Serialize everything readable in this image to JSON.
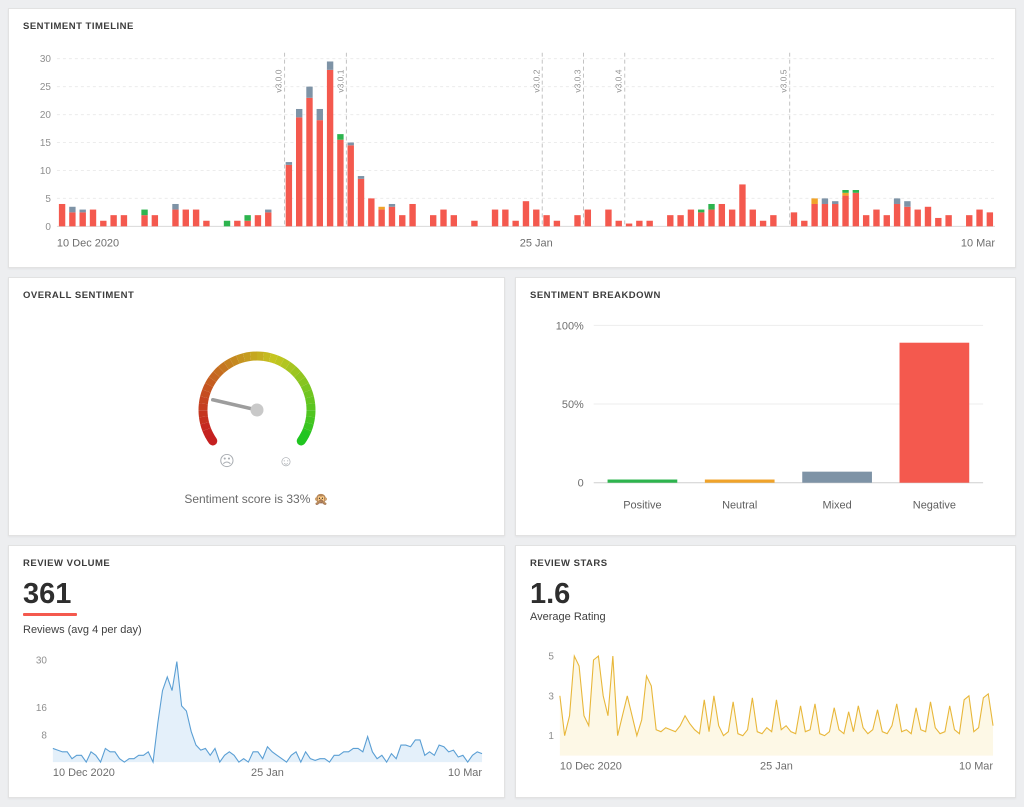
{
  "panels": {
    "timeline": {
      "title": "SENTIMENT TIMELINE"
    },
    "overall": {
      "title": "OVERALL SENTIMENT",
      "caption": "Sentiment score is 33% 🙊"
    },
    "breakdown": {
      "title": "SENTIMENT BREAKDOWN"
    },
    "volume": {
      "title": "REVIEW VOLUME",
      "value": "361",
      "subtitle": "Reviews (avg 4 per day)"
    },
    "stars": {
      "title": "REVIEW STARS",
      "value": "1.6",
      "subtitle": "Average Rating"
    }
  },
  "chart_data": [
    {
      "id": "sentiment-timeline",
      "type": "bar",
      "stacked": true,
      "title": "Sentiment timeline",
      "x_start_label": "10 Dec 2020",
      "x_mid_label": "25 Jan",
      "x_end_label": "10 Mar",
      "x_mid_index": 46,
      "ylim": [
        0,
        30
      ],
      "y_ticks": [
        0,
        5,
        10,
        15,
        20,
        25,
        30
      ],
      "series_order": [
        "negative",
        "mixed",
        "neutral",
        "positive"
      ],
      "colors": {
        "negative": "#f4594e",
        "mixed": "#7e93a6",
        "neutral": "#f0a32a",
        "positive": "#2db44e"
      },
      "releases": [
        {
          "label": "v3.0.0",
          "day": 22
        },
        {
          "label": "v3.0.1",
          "day": 28
        },
        {
          "label": "v3.0.2",
          "day": 47
        },
        {
          "label": "v3.0.3",
          "day": 51
        },
        {
          "label": "v3.0.4",
          "day": 55
        },
        {
          "label": "v3.0.5",
          "day": 71
        }
      ],
      "bars": [
        [
          4,
          0,
          0,
          0
        ],
        [
          2.5,
          1,
          0,
          0
        ],
        [
          2.5,
          0.5,
          0,
          0
        ],
        [
          3,
          0,
          0,
          0
        ],
        [
          1,
          0,
          0,
          0
        ],
        [
          2,
          0,
          0,
          0
        ],
        [
          2,
          0,
          0,
          0
        ],
        [
          0,
          0,
          0,
          0
        ],
        [
          2,
          0,
          0,
          1
        ],
        [
          2,
          0,
          0,
          0
        ],
        [
          0,
          0,
          0,
          0
        ],
        [
          3,
          1,
          0,
          0
        ],
        [
          3,
          0,
          0,
          0
        ],
        [
          3,
          0,
          0,
          0
        ],
        [
          1,
          0,
          0,
          0
        ],
        [
          0,
          0,
          0,
          0
        ],
        [
          0,
          0,
          0,
          1
        ],
        [
          1,
          0,
          0,
          0
        ],
        [
          1,
          0,
          0,
          1
        ],
        [
          2,
          0,
          0,
          0
        ],
        [
          2.5,
          0.5,
          0,
          0
        ],
        [
          0,
          0,
          0,
          0
        ],
        [
          11,
          0.5,
          0,
          0
        ],
        [
          19.5,
          1.5,
          0,
          0
        ],
        [
          23,
          2,
          0,
          0
        ],
        [
          19,
          2,
          0,
          0
        ],
        [
          28,
          1.5,
          0,
          0
        ],
        [
          15.5,
          0,
          0,
          1
        ],
        [
          14.5,
          0.5,
          0,
          0
        ],
        [
          8.5,
          0.5,
          0,
          0
        ],
        [
          5,
          0,
          0,
          0
        ],
        [
          3,
          0,
          0.5,
          0
        ],
        [
          3.5,
          0.5,
          0,
          0
        ],
        [
          2,
          0,
          0,
          0
        ],
        [
          4,
          0,
          0,
          0
        ],
        [
          0,
          0,
          0,
          0
        ],
        [
          2,
          0,
          0,
          0
        ],
        [
          3,
          0,
          0,
          0
        ],
        [
          2,
          0,
          0,
          0
        ],
        [
          0,
          0,
          0,
          0
        ],
        [
          1,
          0,
          0,
          0
        ],
        [
          0,
          0,
          0,
          0
        ],
        [
          3,
          0,
          0,
          0
        ],
        [
          3,
          0,
          0,
          0
        ],
        [
          1,
          0,
          0,
          0
        ],
        [
          4.5,
          0,
          0,
          0
        ],
        [
          3,
          0,
          0,
          0
        ],
        [
          2,
          0,
          0,
          0
        ],
        [
          1,
          0,
          0,
          0
        ],
        [
          0,
          0,
          0,
          0
        ],
        [
          2,
          0,
          0,
          0
        ],
        [
          3,
          0,
          0,
          0
        ],
        [
          0,
          0,
          0,
          0
        ],
        [
          3,
          0,
          0,
          0
        ],
        [
          1,
          0,
          0,
          0
        ],
        [
          0.5,
          0,
          0,
          0
        ],
        [
          1,
          0,
          0,
          0
        ],
        [
          1,
          0,
          0,
          0
        ],
        [
          0,
          0,
          0,
          0
        ],
        [
          2,
          0,
          0,
          0
        ],
        [
          2,
          0,
          0,
          0
        ],
        [
          3,
          0,
          0,
          0
        ],
        [
          2.5,
          0,
          0,
          0.5
        ],
        [
          3,
          0,
          0,
          1
        ],
        [
          4,
          0,
          0,
          0
        ],
        [
          3,
          0,
          0,
          0
        ],
        [
          7.5,
          0,
          0,
          0
        ],
        [
          3,
          0,
          0,
          0
        ],
        [
          1,
          0,
          0,
          0
        ],
        [
          2,
          0,
          0,
          0
        ],
        [
          0,
          0,
          0,
          0
        ],
        [
          2.5,
          0,
          0,
          0
        ],
        [
          1,
          0,
          0,
          0
        ],
        [
          4,
          0,
          1,
          0
        ],
        [
          4,
          1,
          0,
          0
        ],
        [
          4,
          0.5,
          0,
          0
        ],
        [
          5.5,
          0,
          0.5,
          0.5
        ],
        [
          6,
          0,
          0,
          0.5
        ],
        [
          2,
          0,
          0,
          0
        ],
        [
          3,
          0,
          0,
          0
        ],
        [
          2,
          0,
          0,
          0
        ],
        [
          4,
          1,
          0,
          0
        ],
        [
          3.5,
          1,
          0,
          0
        ],
        [
          3,
          0,
          0,
          0
        ],
        [
          3.5,
          0,
          0,
          0
        ],
        [
          1.5,
          0,
          0,
          0
        ],
        [
          2,
          0,
          0,
          0
        ],
        [
          0,
          0,
          0,
          0
        ],
        [
          2,
          0,
          0,
          0
        ],
        [
          3,
          0,
          0,
          0
        ],
        [
          2.5,
          0,
          0,
          0
        ]
      ]
    },
    {
      "id": "overall-sentiment-gauge",
      "type": "gauge",
      "score_pct": 33,
      "caption": "Sentiment score is 33% 🙊",
      "needle_angle_deg": 167,
      "color_scale": [
        "#d43d2a",
        "#f08c1e",
        "#f4c20d",
        "#2db44e"
      ],
      "sad_face": "☹",
      "happy_face": "☺"
    },
    {
      "id": "sentiment-breakdown",
      "type": "bar",
      "categories": [
        "Positive",
        "Neutral",
        "Mixed",
        "Negative"
      ],
      "values": [
        2,
        2,
        7,
        89
      ],
      "colors": [
        "#2db44e",
        "#f0a32a",
        "#7e93a6",
        "#f4594e"
      ],
      "y_ticks": [
        "0",
        "50%",
        "100%"
      ],
      "y_tick_values": [
        0,
        50,
        100
      ],
      "ylim": [
        0,
        100
      ]
    },
    {
      "id": "review-volume",
      "type": "area",
      "headline": "361",
      "subtitle": "Reviews (avg 4 per day)",
      "line_color": "#5b9fd4",
      "fill_color": "#e4f0fa",
      "y_ticks": [
        8,
        16,
        30
      ],
      "ylim": [
        0,
        31
      ],
      "x_ticks": [
        "10 Dec 2020",
        "25 Jan",
        "10 Mar"
      ],
      "values": [
        4,
        3.5,
        3,
        3,
        1,
        2,
        2,
        0,
        3,
        2,
        0,
        4,
        3,
        3,
        1,
        0,
        1,
        1,
        2,
        2,
        3,
        0,
        11.5,
        21,
        25,
        21,
        29.5,
        16.5,
        15,
        9,
        5,
        3.5,
        4,
        2,
        4,
        0,
        2,
        3,
        2,
        0,
        1,
        0,
        3,
        3,
        1,
        4.5,
        3,
        2,
        1,
        0,
        2,
        3,
        0,
        3,
        1,
        0.5,
        1,
        1,
        0,
        2,
        2,
        3,
        3,
        4,
        4,
        3,
        7.5,
        3,
        1,
        2,
        0,
        2.5,
        1,
        5,
        5,
        4.5,
        6.5,
        6.5,
        2,
        3,
        2,
        5,
        4.5,
        3,
        3.5,
        1.5,
        2,
        0,
        2,
        3,
        2.5
      ]
    },
    {
      "id": "review-stars",
      "type": "line",
      "headline": "1.6",
      "subtitle": "Average Rating",
      "line_color": "#e8b73a",
      "fill_color": "#fdf8e6",
      "y_ticks": [
        1,
        3,
        5
      ],
      "ylim": [
        0,
        5.3
      ],
      "x_ticks": [
        "10 Dec 2020",
        "25 Jan",
        "10 Mar"
      ],
      "values": [
        3,
        1,
        2,
        5,
        4.5,
        2,
        1.5,
        4.8,
        5,
        3,
        2,
        5,
        1,
        2,
        3,
        2,
        1,
        1.8,
        4,
        3.5,
        1.3,
        1.2,
        1.4,
        1.3,
        1.2,
        1.5,
        2,
        1.6,
        1.3,
        1.1,
        2.8,
        1.2,
        3,
        1.5,
        1,
        1.2,
        2.7,
        1.1,
        1,
        1.3,
        2.9,
        1.2,
        1.1,
        1.4,
        1.2,
        2.8,
        1.3,
        1.5,
        1.2,
        1.1,
        2.5,
        1.2,
        1.3,
        2.6,
        1.1,
        1,
        1.2,
        2.4,
        1.3,
        1.1,
        2.2,
        1.2,
        2.5,
        1.4,
        1.1,
        1.3,
        2.3,
        1.2,
        1.1,
        1.5,
        2.6,
        1.2,
        1.3,
        1.1,
        2.4,
        1.3,
        1.2,
        2.7,
        1.4,
        1.1,
        1.2,
        2.5,
        1.3,
        1.1,
        2.8,
        3,
        1.2,
        1.4,
        2.9,
        3.1,
        1.5
      ]
    }
  ]
}
